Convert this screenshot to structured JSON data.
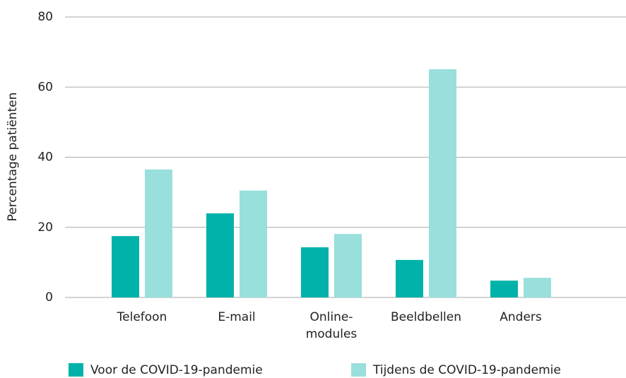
{
  "chart_data": {
    "type": "bar",
    "y_label": "Percentage patiënten",
    "categories": [
      "Telefoon",
      "E-mail",
      "Online-\nmodules",
      "Beeldbellen",
      "Anders"
    ],
    "series": [
      {
        "name": "Voor de COVID-19-pandemie",
        "color": "#00b2a9",
        "values": [
          17.5,
          24,
          14.3,
          10.7,
          4.8
        ]
      },
      {
        "name": "Tijdens de COVID-19-pandemie",
        "color": "#99dfdc",
        "values": [
          36.5,
          30.5,
          18.1,
          65.1,
          5.6
        ]
      }
    ],
    "ylim": [
      0,
      80
    ],
    "yticks": [
      0,
      20,
      40,
      60,
      80
    ],
    "grid": true,
    "legend": "bottom"
  }
}
